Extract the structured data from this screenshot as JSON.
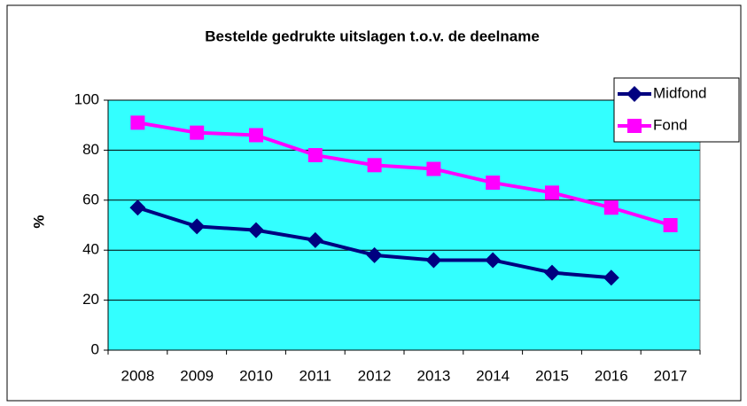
{
  "chart_data": {
    "type": "line",
    "title": "Bestelde gedrukte uitslagen t.o.v. de deelname",
    "y_label": "%",
    "categories": [
      "2008",
      "2009",
      "2010",
      "2011",
      "2012",
      "2013",
      "2014",
      "2015",
      "2016",
      "2017"
    ],
    "series": [
      {
        "name": "Midfond",
        "color": "#000080",
        "marker": "diamond",
        "values": [
          57,
          49.5,
          48,
          44,
          38,
          36,
          36,
          31,
          29,
          null
        ]
      },
      {
        "name": "Fond",
        "color": "#ff00ff",
        "marker": "square",
        "values": [
          91,
          87,
          86,
          78,
          74,
          72.5,
          67,
          63,
          57,
          50
        ]
      }
    ],
    "ylim": [
      0,
      100
    ],
    "yticks": [
      0,
      20,
      40,
      60,
      80,
      100
    ],
    "grid": true,
    "legend": "top-right",
    "background": "#33ffff"
  }
}
